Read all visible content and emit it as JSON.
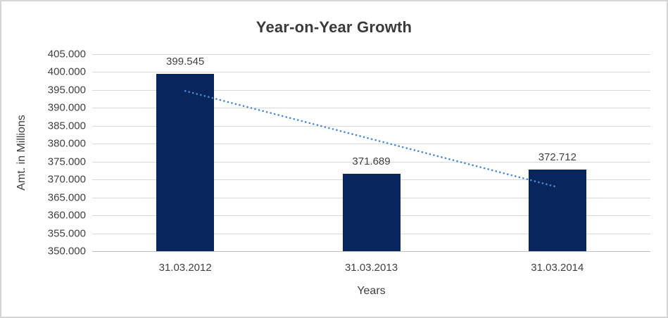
{
  "chart_data": {
    "type": "bar",
    "title": "Year-on-Year Growth",
    "xlabel": "Years",
    "ylabel": "Amt. in Millions",
    "categories": [
      "31.03.2012",
      "31.03.2013",
      "31.03.2014"
    ],
    "values": [
      399545,
      371689,
      372712
    ],
    "data_labels": [
      "399.545",
      "371.689",
      "372.712"
    ],
    "ylim": [
      350000,
      405000
    ],
    "ytick_step": 5000,
    "yticks": [
      {
        "value": 405000,
        "label": "405.000"
      },
      {
        "value": 400000,
        "label": "400.000"
      },
      {
        "value": 395000,
        "label": "395.000"
      },
      {
        "value": 390000,
        "label": "390.000"
      },
      {
        "value": 385000,
        "label": "385.000"
      },
      {
        "value": 380000,
        "label": "380.000"
      },
      {
        "value": 375000,
        "label": "375.000"
      },
      {
        "value": 370000,
        "label": "370.000"
      },
      {
        "value": 365000,
        "label": "365.000"
      },
      {
        "value": 360000,
        "label": "360.000"
      },
      {
        "value": 355000,
        "label": "355.000"
      },
      {
        "value": 350000,
        "label": "350.000"
      }
    ],
    "grid": true,
    "legend": "none",
    "bar_color": "#08265c",
    "trendline": {
      "type": "linear",
      "style": "dotted",
      "color": "#4a89cf",
      "from": {
        "category_index": 0,
        "value": 394731
      },
      "to": {
        "category_index": 2,
        "value": 367901
      }
    }
  }
}
